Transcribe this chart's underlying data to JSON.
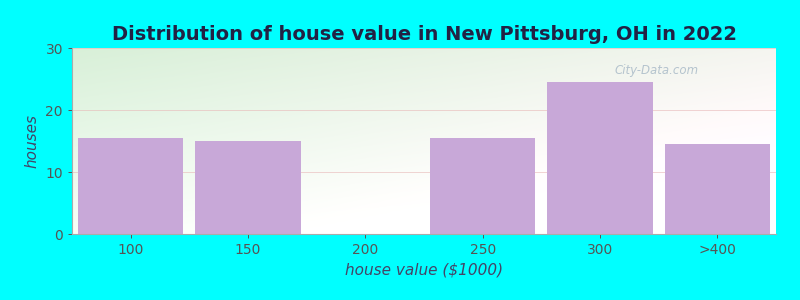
{
  "title": "Distribution of house value in New Pittsburg, OH in 2022",
  "xlabel": "house value ($1000)",
  "ylabel": "houses",
  "categories": [
    "100",
    "150",
    "200",
    "250",
    "300",
    ">400"
  ],
  "values": [
    15.5,
    15.0,
    0,
    15.5,
    24.5,
    14.5
  ],
  "bar_color": "#c8a8d8",
  "background_color": "#00ffff",
  "ylim": [
    0,
    30
  ],
  "yticks": [
    0,
    10,
    20,
    30
  ],
  "title_fontsize": 14,
  "label_fontsize": 11,
  "tick_fontsize": 10,
  "watermark": "City-Data.com",
  "grid_color": "#dddddd",
  "grad_left": "#d8f0d8",
  "grad_right": "#f5f5f0"
}
